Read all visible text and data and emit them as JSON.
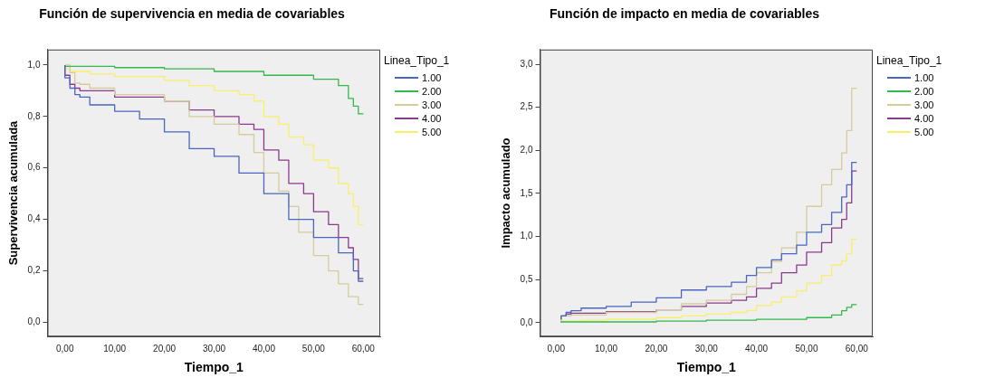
{
  "chart_data": [
    {
      "type": "step",
      "title": "Función de supervivencia en media de covariables",
      "xlabel": "Tiempo_1",
      "ylabel": "Supervivencia acumulada",
      "legend_title": "Linea_Tipo_1",
      "legend": "right",
      "xlim": [
        -3.5,
        63.4
      ],
      "ylim": [
        -0.055,
        1.06
      ],
      "xticks": [
        {
          "value": 0,
          "label": "0,00"
        },
        {
          "value": 10,
          "label": "10,00"
        },
        {
          "value": 20,
          "label": "20,00"
        },
        {
          "value": 30,
          "label": "30,00"
        },
        {
          "value": 40,
          "label": "40,00"
        },
        {
          "value": 50,
          "label": "50,00"
        },
        {
          "value": 60,
          "label": "60,00"
        }
      ],
      "yticks": [
        {
          "value": 0,
          "label": "0,0"
        },
        {
          "value": 0.2,
          "label": "0,2"
        },
        {
          "value": 0.4,
          "label": "0,4"
        },
        {
          "value": 0.6,
          "label": "0,6"
        },
        {
          "value": 0.8,
          "label": "0,8"
        },
        {
          "value": 1,
          "label": "1,0"
        }
      ],
      "series": [
        {
          "name": "1.00",
          "color": "#4a66c0",
          "x": [
            0,
            1,
            2,
            3,
            5,
            10,
            15,
            20,
            25,
            30,
            35,
            40,
            45,
            50,
            55,
            58,
            59,
            60
          ],
          "values": [
            1,
            0.95,
            0.91,
            0.885,
            0.875,
            0.845,
            0.82,
            0.79,
            0.74,
            0.675,
            0.645,
            0.58,
            0.5,
            0.4,
            0.33,
            0.27,
            0.2,
            0.16
          ]
        },
        {
          "name": "2.00",
          "color": "#35b84c",
          "x": [
            0,
            10,
            20,
            30,
            40,
            50,
            55,
            57,
            58,
            59,
            60
          ],
          "values": [
            1,
            0.995,
            0.99,
            0.985,
            0.975,
            0.96,
            0.945,
            0.92,
            0.87,
            0.84,
            0.81
          ]
        },
        {
          "name": "3.00",
          "color": "#d4cc9c",
          "x": [
            0,
            1,
            2,
            3,
            5,
            10,
            20,
            25,
            30,
            35,
            38,
            40,
            43,
            45,
            47,
            50,
            53,
            55,
            57,
            59,
            60
          ],
          "values": [
            1,
            1,
            0.97,
            0.93,
            0.925,
            0.91,
            0.885,
            0.86,
            0.8,
            0.77,
            0.73,
            0.66,
            0.58,
            0.51,
            0.45,
            0.35,
            0.26,
            0.2,
            0.15,
            0.1,
            0.07
          ]
        },
        {
          "name": "4.00",
          "color": "#8a3a8c",
          "x": [
            0,
            1,
            2,
            3,
            10,
            20,
            25,
            30,
            35,
            38,
            40,
            43,
            45,
            48,
            50,
            53,
            55,
            57,
            58,
            59,
            60
          ],
          "values": [
            1,
            0.96,
            0.925,
            0.91,
            0.9,
            0.875,
            0.86,
            0.825,
            0.8,
            0.77,
            0.75,
            0.67,
            0.63,
            0.54,
            0.5,
            0.43,
            0.38,
            0.33,
            0.29,
            0.245,
            0.17
          ]
        },
        {
          "name": "5.00",
          "color": "#f6f06a",
          "x": [
            0,
            1,
            5,
            10,
            20,
            25,
            30,
            35,
            38,
            40,
            43,
            45,
            48,
            50,
            53,
            55,
            57,
            58,
            59,
            60
          ],
          "values": [
            1,
            0.985,
            0.975,
            0.965,
            0.955,
            0.94,
            0.92,
            0.9,
            0.885,
            0.86,
            0.8,
            0.77,
            0.72,
            0.69,
            0.63,
            0.6,
            0.54,
            0.5,
            0.45,
            0.38
          ]
        }
      ]
    },
    {
      "type": "step",
      "title": "Función de impacto en media de covariables",
      "xlabel": "Tiempo_1",
      "ylabel": "Impacto acumulado",
      "legend_title": "Linea_Tipo_1",
      "legend": "right",
      "xlim": [
        -3.2,
        63.2
      ],
      "ylim": [
        -0.16,
        3.17
      ],
      "xticks": [
        {
          "value": 0,
          "label": "0,00"
        },
        {
          "value": 10,
          "label": "10,00"
        },
        {
          "value": 20,
          "label": "20,00"
        },
        {
          "value": 30,
          "label": "30,00"
        },
        {
          "value": 40,
          "label": "40,00"
        },
        {
          "value": 50,
          "label": "50,00"
        },
        {
          "value": 60,
          "label": "60,00"
        }
      ],
      "yticks": [
        {
          "value": 0,
          "label": "0,0"
        },
        {
          "value": 0.5,
          "label": "0,5"
        },
        {
          "value": 1,
          "label": "1,0"
        },
        {
          "value": 1.5,
          "label": "1,5"
        },
        {
          "value": 2,
          "label": "2,0"
        },
        {
          "value": 2.5,
          "label": "2,5"
        },
        {
          "value": 3,
          "label": "3,0"
        }
      ],
      "series": [
        {
          "name": "1.00",
          "color": "#4a66c0",
          "x": [
            1,
            2,
            3,
            5,
            10,
            15,
            20,
            25,
            30,
            35,
            38,
            40,
            43,
            45,
            48,
            50,
            53,
            55,
            57,
            58,
            59,
            60
          ],
          "values": [
            0.04,
            0.08,
            0.12,
            0.14,
            0.17,
            0.19,
            0.24,
            0.29,
            0.38,
            0.42,
            0.47,
            0.55,
            0.64,
            0.73,
            0.8,
            0.9,
            1.05,
            1.14,
            1.28,
            1.46,
            1.6,
            1.86
          ]
        },
        {
          "name": "2.00",
          "color": "#35b84c",
          "x": [
            1,
            10,
            20,
            30,
            40,
            50,
            55,
            57,
            58,
            59,
            60
          ],
          "values": [
            0,
            0.01,
            0.01,
            0.02,
            0.03,
            0.04,
            0.06,
            0.09,
            0.14,
            0.18,
            0.21
          ]
        },
        {
          "name": "3.00",
          "color": "#d4cc9c",
          "x": [
            1,
            3,
            10,
            20,
            25,
            30,
            35,
            38,
            40,
            43,
            45,
            48,
            50,
            53,
            55,
            57,
            58,
            59,
            60
          ],
          "values": [
            0.02,
            0.08,
            0.09,
            0.12,
            0.15,
            0.22,
            0.26,
            0.33,
            0.42,
            0.58,
            0.71,
            0.87,
            1.05,
            1.35,
            1.6,
            1.78,
            1.97,
            2.23,
            2.72
          ]
        },
        {
          "name": "4.00",
          "color": "#8a3a8c",
          "x": [
            1,
            2,
            3,
            10,
            20,
            25,
            30,
            35,
            38,
            40,
            43,
            45,
            48,
            50,
            53,
            55,
            57,
            58,
            59,
            60
          ],
          "values": [
            0.03,
            0.08,
            0.1,
            0.11,
            0.13,
            0.15,
            0.19,
            0.23,
            0.26,
            0.3,
            0.4,
            0.46,
            0.58,
            0.67,
            0.82,
            0.93,
            1.1,
            1.2,
            1.39,
            1.76
          ]
        },
        {
          "name": "5.00",
          "color": "#f6f06a",
          "x": [
            1,
            5,
            10,
            20,
            25,
            30,
            35,
            38,
            40,
            43,
            45,
            48,
            50,
            53,
            55,
            57,
            58,
            59,
            60
          ],
          "values": [
            0,
            0.02,
            0.03,
            0.04,
            0.06,
            0.08,
            0.1,
            0.12,
            0.14,
            0.2,
            0.24,
            0.3,
            0.37,
            0.46,
            0.55,
            0.67,
            0.72,
            0.8,
            0.97
          ]
        }
      ]
    }
  ]
}
